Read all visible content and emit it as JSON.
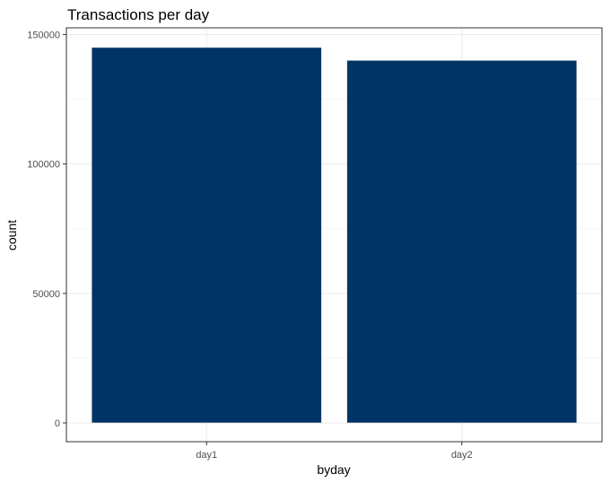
{
  "chart_data": {
    "type": "bar",
    "title": "Transactions per day",
    "xlabel": "byday",
    "ylabel": "count",
    "categories": [
      "day1",
      "day2"
    ],
    "values": [
      145000,
      140000
    ],
    "ylim": [
      0,
      150000
    ],
    "yticks": [
      0,
      50000,
      100000,
      150000
    ],
    "ytick_labels": [
      "0",
      "50000",
      "100000",
      "150000"
    ],
    "grid": true,
    "bar_color": "#003366"
  }
}
